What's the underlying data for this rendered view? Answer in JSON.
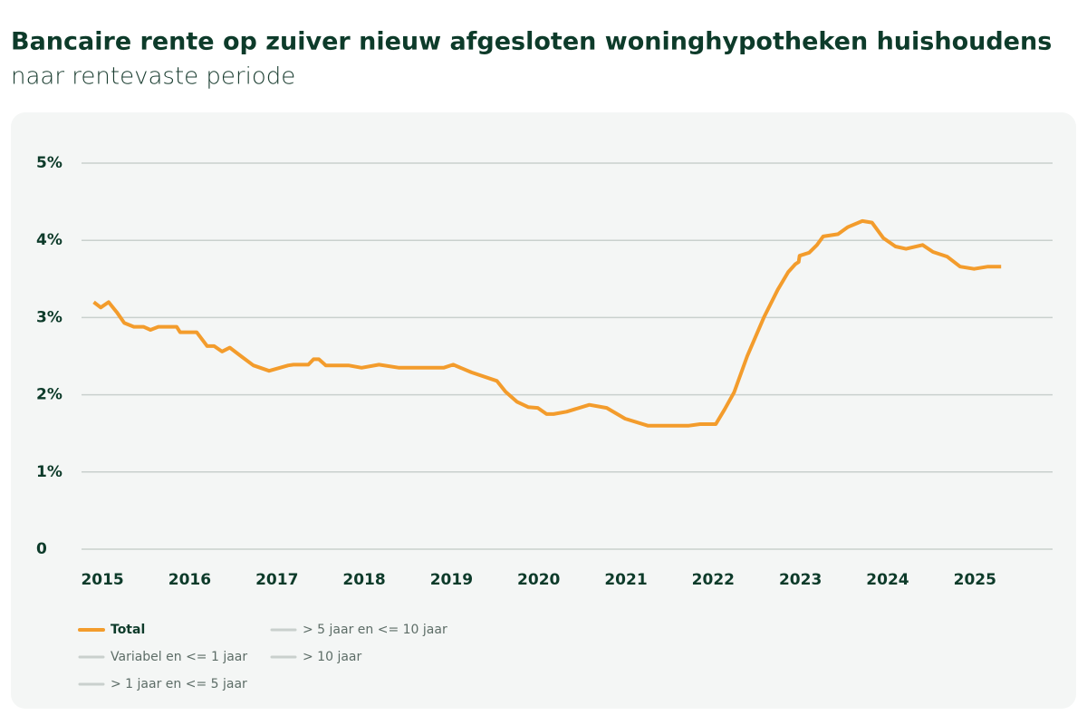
{
  "chart_data": {
    "type": "line",
    "title": "Bancaire rente op zuiver nieuw afgesloten woninghypotheken huishoudens",
    "subtitle": "naar rentevaste periode",
    "x": [
      2014.9,
      2014.98,
      2015.07,
      2015.17,
      2015.25,
      2015.36,
      2015.47,
      2015.55,
      2015.64,
      2015.85,
      2015.89,
      2016.08,
      2016.2,
      2016.28,
      2016.37,
      2016.46,
      2016.6,
      2016.73,
      2016.91,
      2017.13,
      2017.19,
      2017.36,
      2017.42,
      2017.48,
      2017.56,
      2017.82,
      2017.97,
      2018.17,
      2018.4,
      2018.91,
      2019.02,
      2019.23,
      2019.52,
      2019.62,
      2019.75,
      2019.88,
      2019.99,
      2020.09,
      2020.17,
      2020.32,
      2020.58,
      2020.78,
      2020.99,
      2021.25,
      2021.72,
      2021.85,
      2022.03,
      2022.13,
      2022.24,
      2022.39,
      2022.58,
      2022.74,
      2022.86,
      2022.94,
      2022.98,
      2022.99,
      2023.1,
      2023.19,
      2023.26,
      2023.43,
      2023.54,
      2023.71,
      2023.82,
      2023.95,
      2024.09,
      2024.21,
      2024.4,
      2024.52,
      2024.68,
      2024.83,
      2024.99,
      2025.15,
      2025.3
    ],
    "series": [
      {
        "name": "Total",
        "color": "#f39c2c",
        "visible": true,
        "values": [
          3.2,
          3.13,
          3.2,
          3.06,
          2.93,
          2.88,
          2.88,
          2.84,
          2.88,
          2.88,
          2.81,
          2.81,
          2.63,
          2.63,
          2.56,
          2.61,
          2.49,
          2.38,
          2.31,
          2.38,
          2.39,
          2.39,
          2.46,
          2.46,
          2.38,
          2.38,
          2.35,
          2.39,
          2.35,
          2.35,
          2.39,
          2.29,
          2.18,
          2.04,
          1.91,
          1.84,
          1.83,
          1.75,
          1.75,
          1.78,
          1.87,
          1.83,
          1.69,
          1.6,
          1.6,
          1.62,
          1.62,
          1.81,
          2.03,
          2.5,
          3.0,
          3.36,
          3.59,
          3.69,
          3.72,
          3.8,
          3.84,
          3.94,
          4.05,
          4.08,
          4.17,
          4.25,
          4.23,
          4.03,
          3.92,
          3.89,
          3.94,
          3.85,
          3.79,
          3.66,
          3.63,
          3.66,
          3.66
        ]
      },
      {
        "name": "Variabel en <= 1 jaar",
        "color": "#c9d0cd",
        "visible": false,
        "values": [
          null,
          null,
          null,
          null,
          null,
          null,
          null,
          null,
          null,
          null,
          null,
          null,
          null,
          null,
          null,
          null,
          null,
          null,
          null,
          null,
          null,
          null,
          null,
          null,
          null,
          null,
          null,
          null,
          null,
          null,
          null,
          null,
          null,
          null,
          null,
          null,
          null,
          null,
          null,
          null,
          null,
          null,
          null,
          null,
          null,
          null,
          null,
          null,
          null,
          null,
          null,
          null,
          null,
          null,
          null,
          null,
          null,
          null,
          null,
          null,
          null,
          null,
          null,
          null,
          null,
          null,
          null,
          null,
          null,
          null,
          null,
          null,
          null
        ]
      },
      {
        "name": "> 1 jaar en <= 5 jaar",
        "color": "#c9d0cd",
        "visible": false,
        "values": [
          null,
          null,
          null,
          null,
          null,
          null,
          null,
          null,
          null,
          null,
          null,
          null,
          null,
          null,
          null,
          null,
          null,
          null,
          null,
          null,
          null,
          null,
          null,
          null,
          null,
          null,
          null,
          null,
          null,
          null,
          null,
          null,
          null,
          null,
          null,
          null,
          null,
          null,
          null,
          null,
          null,
          null,
          null,
          null,
          null,
          null,
          null,
          null,
          null,
          null,
          null,
          null,
          null,
          null,
          null,
          null,
          null,
          null,
          null,
          null,
          null,
          null,
          null,
          null,
          null,
          null,
          null,
          null,
          null,
          null,
          null,
          null,
          null
        ]
      },
      {
        "name": "> 5 jaar en <= 10 jaar",
        "color": "#c9d0cd",
        "visible": false,
        "values": [
          null,
          null,
          null,
          null,
          null,
          null,
          null,
          null,
          null,
          null,
          null,
          null,
          null,
          null,
          null,
          null,
          null,
          null,
          null,
          null,
          null,
          null,
          null,
          null,
          null,
          null,
          null,
          null,
          null,
          null,
          null,
          null,
          null,
          null,
          null,
          null,
          null,
          null,
          null,
          null,
          null,
          null,
          null,
          null,
          null,
          null,
          null,
          null,
          null,
          null,
          null,
          null,
          null,
          null,
          null,
          null,
          null,
          null,
          null,
          null,
          null,
          null,
          null,
          null,
          null,
          null,
          null,
          null,
          null,
          null,
          null,
          null,
          null
        ]
      },
      {
        "name": "> 10 jaar",
        "color": "#c9d0cd",
        "visible": false,
        "values": [
          null,
          null,
          null,
          null,
          null,
          null,
          null,
          null,
          null,
          null,
          null,
          null,
          null,
          null,
          null,
          null,
          null,
          null,
          null,
          null,
          null,
          null,
          null,
          null,
          null,
          null,
          null,
          null,
          null,
          null,
          null,
          null,
          null,
          null,
          null,
          null,
          null,
          null,
          null,
          null,
          null,
          null,
          null,
          null,
          null,
          null,
          null,
          null,
          null,
          null,
          null,
          null,
          null,
          null,
          null,
          null,
          null,
          null,
          null,
          null,
          null,
          null,
          null,
          null,
          null,
          null,
          null,
          null,
          null,
          null,
          null,
          null,
          null
        ]
      }
    ],
    "xlim": [
      2014.76,
      2025.89
    ],
    "xticks": [
      2015,
      2016,
      2017,
      2018,
      2019,
      2020,
      2021,
      2022,
      2023,
      2024,
      2025
    ],
    "ylim": [
      0,
      5
    ],
    "yticks": [
      0,
      {
        "value": 1,
        "label": "1%"
      },
      {
        "value": 2,
        "label": "2%"
      },
      {
        "value": 3,
        "label": "3%"
      },
      {
        "value": 4,
        "label": "4%"
      },
      {
        "value": 5,
        "label": "5%"
      }
    ],
    "grid": true
  }
}
